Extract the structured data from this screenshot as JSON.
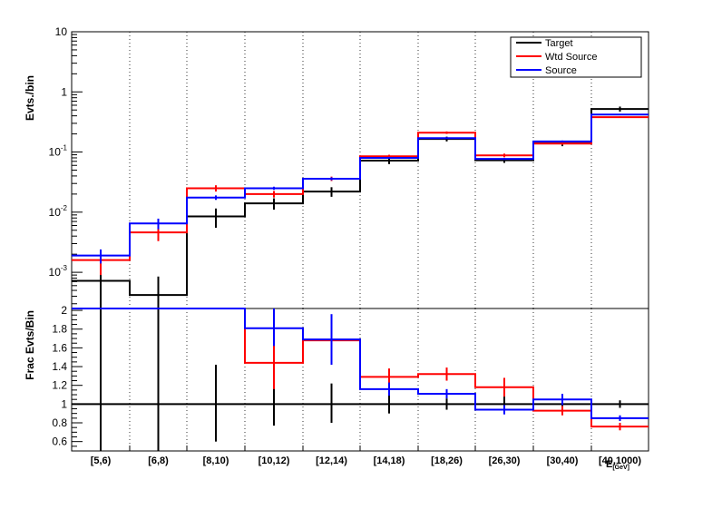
{
  "chart_data": [
    {
      "type": "line",
      "step": true,
      "ylabel": "Evts./bin",
      "yscale": "log",
      "ylim": [
        0.00025,
        10
      ],
      "yticks": [
        {
          "value": 0.001,
          "base": "10",
          "exp": "-3"
        },
        {
          "value": 0.01,
          "base": "10",
          "exp": "-2"
        },
        {
          "value": 0.1,
          "base": "10",
          "exp": "-1"
        },
        {
          "value": 1,
          "base": "1",
          "exp": ""
        },
        {
          "value": 10,
          "base": "10",
          "exp": ""
        }
      ],
      "categories": [
        "[5,6)",
        "[6,8)",
        "[8,10)",
        "[10,12)",
        "[12,14)",
        "[14,18)",
        "[18,26)",
        "[26,30)",
        "[30,40)",
        "[40,1000)"
      ],
      "grid_x": true,
      "legend": {
        "placement": "top-right"
      },
      "series": [
        {
          "name": "Target",
          "color": "#000000",
          "values": [
            0.00072,
            0.00042,
            0.0085,
            0.014,
            0.022,
            0.072,
            0.165,
            0.073,
            0.14,
            0.52
          ],
          "err_low": [
            0.00025,
            0.00025,
            0.0055,
            0.011,
            0.018,
            0.063,
            0.15,
            0.066,
            0.125,
            0.47
          ],
          "err_high": [
            0.0014,
            0.00085,
            0.0115,
            0.017,
            0.026,
            0.081,
            0.18,
            0.08,
            0.155,
            0.57
          ]
        },
        {
          "name": "Wtd Source",
          "color": "#ff0000",
          "values": [
            0.0016,
            0.0046,
            0.025,
            0.02,
            0.036,
            0.085,
            0.21,
            0.088,
            0.138,
            0.38
          ],
          "err_low": [
            0.0009,
            0.0033,
            0.022,
            0.0175,
            0.033,
            0.08,
            0.2,
            0.082,
            0.132,
            0.37
          ],
          "err_high": [
            0.0023,
            0.006,
            0.028,
            0.0225,
            0.039,
            0.09,
            0.22,
            0.094,
            0.144,
            0.39
          ]
        },
        {
          "name": "Source",
          "color": "#0000ff",
          "values": [
            0.0019,
            0.0065,
            0.0175,
            0.025,
            0.036,
            0.08,
            0.17,
            0.077,
            0.15,
            0.42
          ],
          "err_low": [
            0.0014,
            0.0052,
            0.016,
            0.0235,
            0.034,
            0.077,
            0.165,
            0.074,
            0.145,
            0.41
          ],
          "err_high": [
            0.0024,
            0.0078,
            0.019,
            0.0265,
            0.038,
            0.083,
            0.175,
            0.08,
            0.155,
            0.43
          ]
        }
      ]
    },
    {
      "type": "line",
      "step": true,
      "ylabel": "Frac Evts/Bin",
      "xlabel": "E",
      "xlabel_suffix": "[GeV]",
      "ylim": [
        0.5,
        2.02
      ],
      "yticks": [
        0.6,
        0.8,
        1,
        1.2,
        1.4,
        1.6,
        1.8,
        2
      ],
      "categories": [
        "[5,6)",
        "[6,8)",
        "[8,10)",
        "[10,12)",
        "[12,14)",
        "[14,18)",
        "[18,26)",
        "[26,30)",
        "[30,40)",
        "[40,1000)"
      ],
      "grid_x": true,
      "series": [
        {
          "name": "Target",
          "color": "#000000",
          "values": [
            1,
            1,
            1,
            1,
            1,
            1,
            1,
            1,
            1,
            1
          ],
          "err_low": [
            0.3,
            0.3,
            0.6,
            0.77,
            0.8,
            0.9,
            0.94,
            0.92,
            0.92,
            0.96
          ],
          "err_high": [
            2.02,
            2.02,
            1.42,
            1.23,
            1.22,
            1.1,
            1.06,
            1.08,
            1.08,
            1.04
          ]
        },
        {
          "name": "Wtd Source",
          "color": "#ff0000",
          "values": [
            2.02,
            2.02,
            2.02,
            1.44,
            1.68,
            1.29,
            1.32,
            1.18,
            0.93,
            0.76
          ],
          "err_low": [
            2.02,
            2.02,
            2.02,
            1.16,
            1.42,
            1.2,
            1.25,
            1.08,
            0.88,
            0.72
          ],
          "err_high": [
            2.02,
            2.02,
            2.02,
            1.72,
            1.94,
            1.38,
            1.39,
            1.28,
            0.98,
            0.8
          ]
        },
        {
          "name": "Source",
          "color": "#0000ff",
          "values": [
            2.02,
            2.02,
            2.02,
            1.81,
            1.69,
            1.16,
            1.11,
            0.94,
            1.05,
            0.85
          ],
          "err_low": [
            2.02,
            2.02,
            2.02,
            1.62,
            1.42,
            1.09,
            1.06,
            0.89,
            0.99,
            0.82
          ],
          "err_high": [
            2.02,
            2.02,
            2.02,
            2.02,
            1.96,
            1.23,
            1.16,
            0.99,
            1.11,
            0.88
          ]
        }
      ]
    }
  ]
}
